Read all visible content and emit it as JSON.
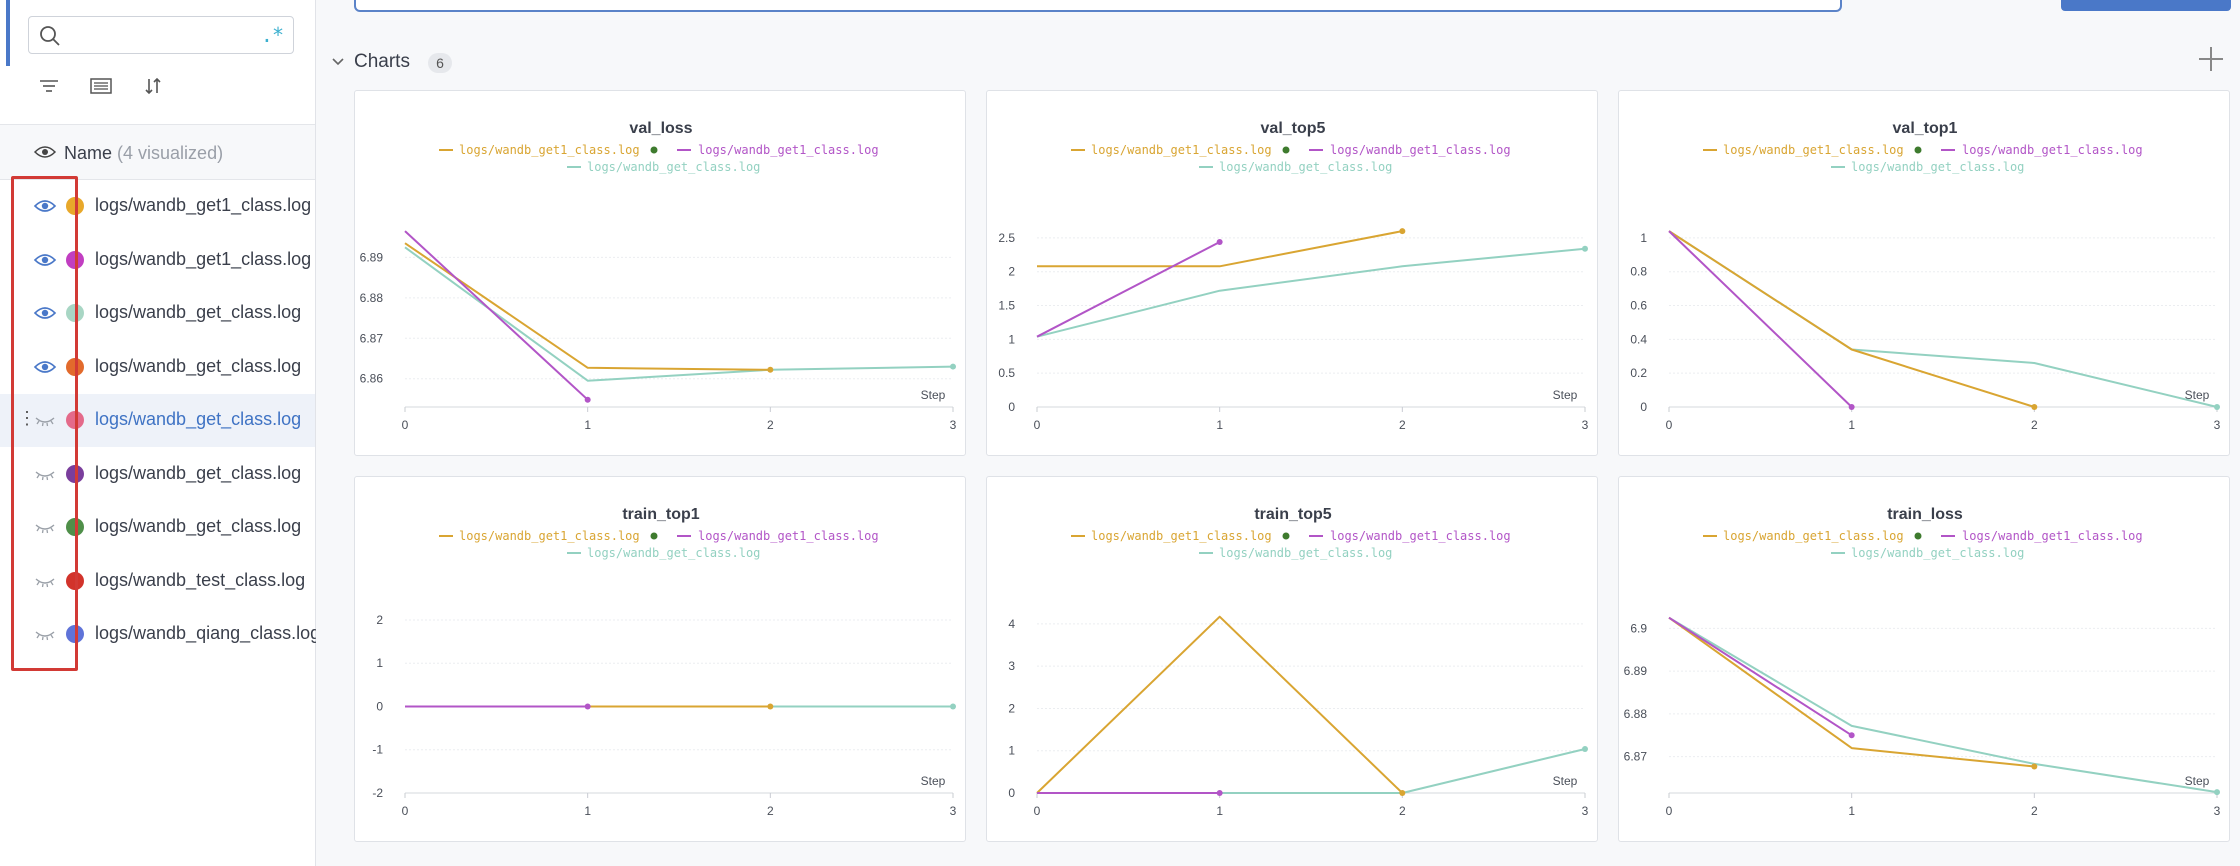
{
  "sidebar": {
    "search": {
      "value": "",
      "regex_label": ".*"
    },
    "tools": [
      "filter-icon",
      "table-icon",
      "sort-icon"
    ],
    "name_header": {
      "label": "Name",
      "count": "(4 visualized)"
    },
    "runs": [
      {
        "name": "logs/wandb_get1_class.log",
        "color": "#e8a82a",
        "visible": true,
        "selected": false
      },
      {
        "name": "logs/wandb_get1_class.log",
        "color": "#c13ec1",
        "visible": true,
        "selected": false
      },
      {
        "name": "logs/wandb_get_class.log",
        "color": "#a8d6c4",
        "visible": true,
        "selected": false
      },
      {
        "name": "logs/wandb_get_class.log",
        "color": "#e26a2c",
        "visible": true,
        "selected": false
      },
      {
        "name": "logs/wandb_get_class.log",
        "color": "#e46a8a",
        "visible": false,
        "selected": true
      },
      {
        "name": "logs/wandb_get_class.log",
        "color": "#7a3e9c",
        "visible": false,
        "selected": false
      },
      {
        "name": "logs/wandb_get_class.log",
        "color": "#4f8f49",
        "visible": false,
        "selected": false
      },
      {
        "name": "logs/wandb_test_class.log",
        "color": "#d2332b",
        "visible": false,
        "selected": false
      },
      {
        "name": "logs/wandb_qiang_class.log",
        "color": "#5f73d8",
        "visible": false,
        "selected": false
      }
    ]
  },
  "main": {
    "section": {
      "title": "Charts",
      "count": "6"
    },
    "add_label": "+"
  },
  "colors": {
    "get1_a": "#d9a532",
    "get1_b": "#b255c7",
    "get": "#93d1c1",
    "indicator": "#3e7b2e"
  },
  "chart_data": [
    {
      "type": "line",
      "title": "val_loss",
      "xlabel": "Step",
      "xlim": [
        0,
        3
      ],
      "ylim": [
        6.853,
        6.899
      ],
      "yticks": [
        6.86,
        6.87,
        6.88,
        6.89
      ],
      "ytick_labels": [
        "6.86",
        "6.87",
        "6.88",
        "6.89"
      ],
      "xticks": [
        0,
        1,
        2,
        3
      ],
      "series": [
        {
          "name": "logs/wandb_get1_class.log",
          "color": "#d9a532",
          "x": [
            0,
            1,
            2
          ],
          "y": [
            6.8935,
            6.8627,
            6.8622
          ]
        },
        {
          "name": "logs/wandb_get1_class.log",
          "color": "#b255c7",
          "x": [
            0,
            1
          ],
          "y": [
            6.8965,
            6.8548
          ]
        },
        {
          "name": "logs/wandb_get_class.log",
          "color": "#93d1c1",
          "x": [
            0,
            1,
            2,
            3
          ],
          "y": [
            6.8925,
            6.8595,
            6.8622,
            6.863
          ]
        }
      ]
    },
    {
      "type": "line",
      "title": "val_top5",
      "xlabel": "Step",
      "xlim": [
        0,
        3
      ],
      "ylim": [
        0,
        2.75
      ],
      "yticks": [
        0,
        0.5,
        1,
        1.5,
        2,
        2.5
      ],
      "ytick_labels": [
        "0",
        "0.5",
        "1",
        "1.5",
        "2",
        "2.5"
      ],
      "xticks": [
        0,
        1,
        2,
        3
      ],
      "series": [
        {
          "name": "logs/wandb_get1_class.log",
          "color": "#d9a532",
          "x": [
            0,
            1,
            2
          ],
          "y": [
            2.08,
            2.08,
            2.6
          ]
        },
        {
          "name": "logs/wandb_get1_class.log",
          "color": "#b255c7",
          "x": [
            0,
            1
          ],
          "y": [
            1.04,
            2.44
          ]
        },
        {
          "name": "logs/wandb_get_class.log",
          "color": "#93d1c1",
          "x": [
            0,
            1,
            2,
            3
          ],
          "y": [
            1.04,
            1.72,
            2.08,
            2.34
          ]
        }
      ]
    },
    {
      "type": "line",
      "title": "val_top1",
      "xlabel": "Step",
      "xlim": [
        0,
        3
      ],
      "ylim": [
        0,
        1.1
      ],
      "yticks": [
        0,
        0.2,
        0.4,
        0.6,
        0.8,
        1
      ],
      "ytick_labels": [
        "0",
        "0.2",
        "0.4",
        "0.6",
        "0.8",
        "1"
      ],
      "xticks": [
        0,
        1,
        2,
        3
      ],
      "series": [
        {
          "name": "logs/wandb_get1_class.log",
          "color": "#d9a532",
          "x": [
            0,
            1,
            2
          ],
          "y": [
            1.04,
            0.34,
            0
          ]
        },
        {
          "name": "logs/wandb_get1_class.log",
          "color": "#b255c7",
          "x": [
            0,
            1
          ],
          "y": [
            1.04,
            0
          ]
        },
        {
          "name": "logs/wandb_get_class.log",
          "color": "#93d1c1",
          "x": [
            0,
            1,
            2,
            3
          ],
          "y": [
            1.04,
            0.34,
            0.26,
            0
          ]
        }
      ]
    },
    {
      "type": "line",
      "title": "train_top1",
      "xlabel": "Step",
      "xlim": [
        0,
        3
      ],
      "ylim": [
        -2,
        2.3
      ],
      "yticks": [
        -2,
        -1,
        0,
        1,
        2
      ],
      "ytick_labels": [
        "-2",
        "-1",
        "0",
        "1",
        "2"
      ],
      "xticks": [
        0,
        1,
        2,
        3
      ],
      "series": [
        {
          "name": "logs/wandb_get1_class.log",
          "color": "#d9a532",
          "x": [
            0,
            1,
            2
          ],
          "y": [
            0,
            0,
            0
          ]
        },
        {
          "name": "logs/wandb_get1_class.log",
          "color": "#b255c7",
          "x": [
            0,
            1
          ],
          "y": [
            0,
            0
          ]
        },
        {
          "name": "logs/wandb_get_class.log",
          "color": "#93d1c1",
          "x": [
            0,
            1,
            2,
            3
          ],
          "y": [
            0,
            0,
            0,
            0
          ]
        }
      ]
    },
    {
      "type": "line",
      "title": "train_top5",
      "xlabel": "Step",
      "xlim": [
        0,
        3
      ],
      "ylim": [
        0,
        4.4
      ],
      "yticks": [
        0,
        1,
        2,
        3,
        4
      ],
      "ytick_labels": [
        "0",
        "1",
        "2",
        "3",
        "4"
      ],
      "xticks": [
        0,
        1,
        2,
        3
      ],
      "series": [
        {
          "name": "logs/wandb_get1_class.log",
          "color": "#d9a532",
          "x": [
            0,
            1,
            2
          ],
          "y": [
            0,
            4.17,
            0
          ]
        },
        {
          "name": "logs/wandb_get1_class.log",
          "color": "#b255c7",
          "x": [
            0,
            1
          ],
          "y": [
            0,
            0
          ]
        },
        {
          "name": "logs/wandb_get_class.log",
          "color": "#93d1c1",
          "x": [
            0,
            1,
            2,
            3
          ],
          "y": [
            0,
            0,
            0,
            1.04
          ]
        }
      ]
    },
    {
      "type": "line",
      "title": "train_loss",
      "xlabel": "Step",
      "xlim": [
        0,
        3
      ],
      "ylim": [
        6.8615,
        6.905
      ],
      "yticks": [
        6.87,
        6.88,
        6.89,
        6.9
      ],
      "ytick_labels": [
        "6.87",
        "6.88",
        "6.89",
        "6.9"
      ],
      "xticks": [
        0,
        1,
        2,
        3
      ],
      "series": [
        {
          "name": "logs/wandb_get1_class.log",
          "color": "#d9a532",
          "x": [
            0,
            1,
            2
          ],
          "y": [
            6.9025,
            6.872,
            6.8677
          ]
        },
        {
          "name": "logs/wandb_get1_class.log",
          "color": "#b255c7",
          "x": [
            0,
            1
          ],
          "y": [
            6.9025,
            6.875
          ]
        },
        {
          "name": "logs/wandb_get_class.log",
          "color": "#93d1c1",
          "x": [
            0,
            1,
            2,
            3
          ],
          "y": [
            6.9025,
            6.8772,
            6.8683,
            6.8617
          ]
        }
      ]
    }
  ]
}
